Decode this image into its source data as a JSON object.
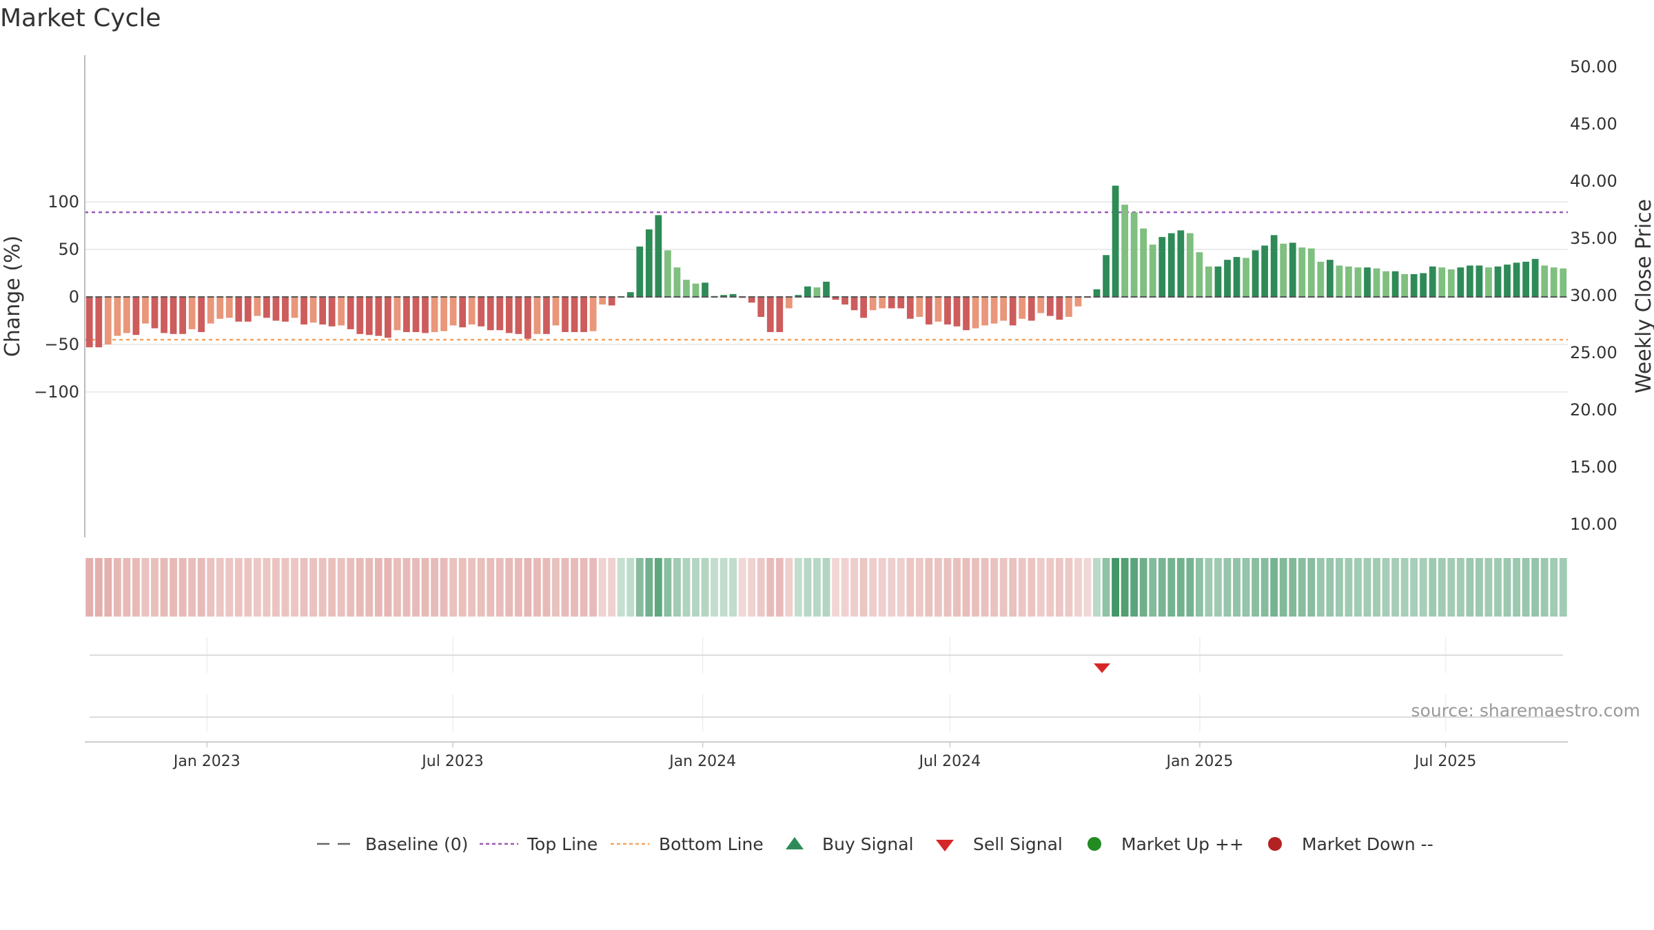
{
  "chart_data": {
    "type": "bar",
    "title": "Market Cycle",
    "ylabel_left": "Change (%)",
    "ylabel_right": "Weekly Close Price",
    "ylim_left": [
      -127,
      127
    ],
    "ylim_right": [
      8,
      52
    ],
    "left_ticks": [
      100,
      50,
      0,
      -50,
      -100
    ],
    "left_tick_labels": [
      "100",
      "50",
      "0",
      "−50",
      "−100"
    ],
    "right_ticks": [
      50,
      45,
      40,
      35,
      30,
      25,
      20,
      15,
      10
    ],
    "right_tick_labels": [
      "50.00",
      "45.00",
      "40.00",
      "35.00",
      "30.00",
      "25.00",
      "20.00",
      "15.00",
      "10.00"
    ],
    "top_line": 89,
    "bottom_line": -45,
    "x_start": "2022-10-03",
    "x_end": "2025-09-29",
    "x_ticks": [
      {
        "date": "2023-01-01",
        "label": "Jan 2023"
      },
      {
        "date": "2023-07-01",
        "label": "Jul 2023"
      },
      {
        "date": "2024-01-01",
        "label": "Jan 2024"
      },
      {
        "date": "2024-07-01",
        "label": "Jul 2024"
      },
      {
        "date": "2025-01-01",
        "label": "Jan 2025"
      },
      {
        "date": "2025-07-01",
        "label": "Jul 2025"
      }
    ],
    "values": [
      -53,
      -53,
      -50,
      -41,
      -38,
      -40,
      -28,
      -33,
      -38,
      -39,
      -39,
      -34,
      -37,
      -28,
      -23,
      -22,
      -26,
      -26,
      -20,
      -22,
      -25,
      -26,
      -22,
      -29,
      -27,
      -29,
      -31,
      -30,
      -34,
      -39,
      -40,
      -41,
      -43,
      -35,
      -37,
      -37,
      -38,
      -37,
      -36,
      -30,
      -32,
      -29,
      -31,
      -35,
      -35,
      -38,
      -39,
      -44,
      -39,
      -39,
      -30,
      -37,
      -37,
      -37,
      -36,
      -8,
      -9,
      0,
      5,
      53,
      71,
      86,
      49,
      31,
      18,
      14,
      15,
      1,
      2,
      3,
      -1,
      -6,
      -21,
      -37,
      -37,
      -12,
      2,
      11,
      10,
      16,
      -3,
      -8,
      -14,
      -22,
      -14,
      -12,
      -12,
      -12,
      -23,
      -21,
      -29,
      -26,
      -29,
      -31,
      -35,
      -33,
      -30,
      -28,
      -25,
      -30,
      -23,
      -25,
      -17,
      -20,
      -24,
      -21,
      -10,
      -1,
      8,
      44,
      117,
      97,
      89,
      72,
      55,
      63,
      67,
      70,
      67,
      47,
      32,
      32,
      39,
      42,
      41,
      49,
      54,
      65,
      56,
      57,
      52,
      51,
      37,
      39,
      33,
      32,
      31,
      31,
      30,
      27,
      27,
      24,
      24,
      25,
      32,
      31,
      29,
      31,
      33,
      33,
      31,
      32,
      34,
      36,
      37,
      40,
      33,
      31,
      30
    ],
    "sell_signals": [
      "2024-10-21"
    ],
    "buy_signals": []
  },
  "legend": [
    {
      "key": "baseline",
      "label": "Baseline (0)"
    },
    {
      "key": "top",
      "label": "Top Line"
    },
    {
      "key": "bottom",
      "label": "Bottom Line"
    },
    {
      "key": "buy",
      "label": "Buy Signal"
    },
    {
      "key": "sell",
      "label": "Sell Signal"
    },
    {
      "key": "up",
      "label": "Market Up ++"
    },
    {
      "key": "down",
      "label": "Market Down --"
    }
  ],
  "source": "source: sharemaestro.com",
  "colors": {
    "up_strong": "#2e8b57",
    "up_light": "#7fbf7f",
    "down_strong": "#cd5c5c",
    "down_light": "#e9967a",
    "top_line": "#9b59b6",
    "bottom_line": "#f4a460",
    "buy": "#2e8b57",
    "sell": "#d62728",
    "market_up": "#228b22",
    "market_down": "#b22222"
  }
}
